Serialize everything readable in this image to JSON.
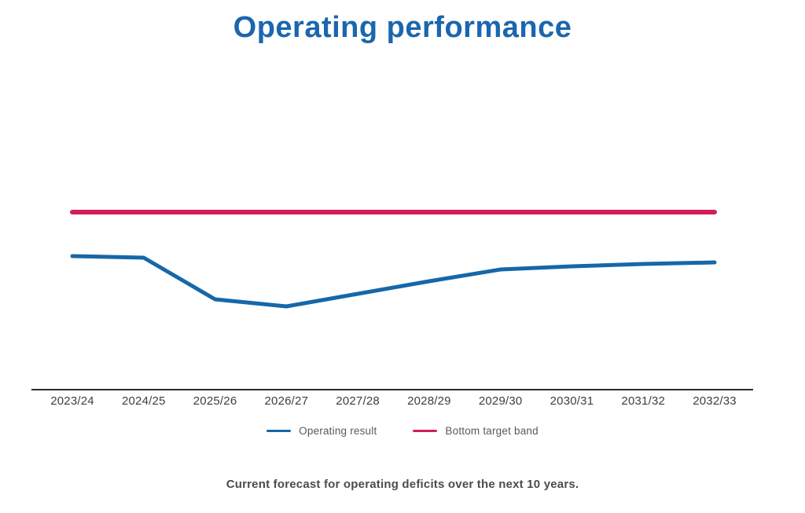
{
  "page": {
    "title": "Operating performance",
    "caption": "Current forecast for operating deficits over the next 10 years."
  },
  "legend": {
    "items": [
      {
        "label": "Operating result",
        "color": "#1667A8"
      },
      {
        "label": "Bottom target band",
        "color": "#D21E56"
      }
    ]
  },
  "chart_data": {
    "type": "line",
    "title": "Operating performance",
    "categories": [
      "2023/24",
      "2024/25",
      "2025/26",
      "2026/27",
      "2027/28",
      "2028/29",
      "2029/30",
      "2030/31",
      "2031/32",
      "2032/33"
    ],
    "series": [
      {
        "name": "Operating result",
        "color": "#1667A8",
        "stroke_width": 5,
        "values": [
          170,
          168,
          115,
          106,
          122,
          138,
          153,
          157,
          160,
          162
        ]
      },
      {
        "name": "Bottom target band",
        "color": "#D21E56",
        "stroke_width": 6,
        "values": [
          226,
          226,
          226,
          226,
          226,
          226,
          226,
          226,
          226,
          226
        ]
      }
    ],
    "xlabel": "",
    "ylabel": "",
    "y_axis_labels_visible": false,
    "value_units": "relative (no y-axis scale shown in image)",
    "ylim": [
      0,
      280
    ],
    "grid": false,
    "legend_position": "bottom",
    "axis_color": "#2B2B2B"
  }
}
